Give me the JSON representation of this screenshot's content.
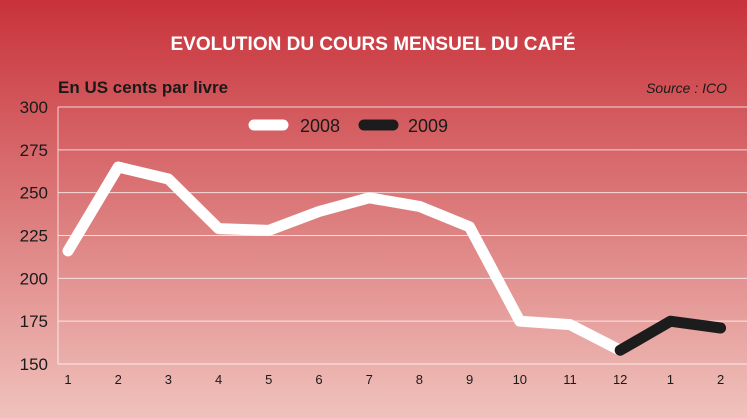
{
  "colors": {
    "bg_top": "#c8323a",
    "bg_bottom": "#f0c2bc",
    "series_2008": "#ffffff",
    "series_2009": "#1c1c1c",
    "grid": "#ffffff"
  },
  "chart_data": {
    "type": "line",
    "title": "EVOLUTION DU COURS MENSUEL DU CAFÉ",
    "ylabel": "En US cents par livre",
    "source": "Source : ICO",
    "ylim": [
      150,
      300
    ],
    "yticks": [
      300,
      275,
      250,
      225,
      200,
      175,
      150
    ],
    "x": [
      "1",
      "2",
      "3",
      "4",
      "5",
      "6",
      "7",
      "8",
      "9",
      "10",
      "11",
      "12",
      "1",
      "2"
    ],
    "grid": true,
    "legend": "top-center",
    "series": [
      {
        "name": "2008",
        "color": "#ffffff",
        "values": [
          216,
          265,
          258,
          229,
          228,
          239,
          247,
          242,
          230,
          175,
          173,
          158,
          null,
          null
        ]
      },
      {
        "name": "2009",
        "color": "#1c1c1c",
        "values": [
          null,
          null,
          null,
          null,
          null,
          null,
          null,
          null,
          null,
          null,
          null,
          158,
          175,
          171
        ]
      }
    ]
  }
}
